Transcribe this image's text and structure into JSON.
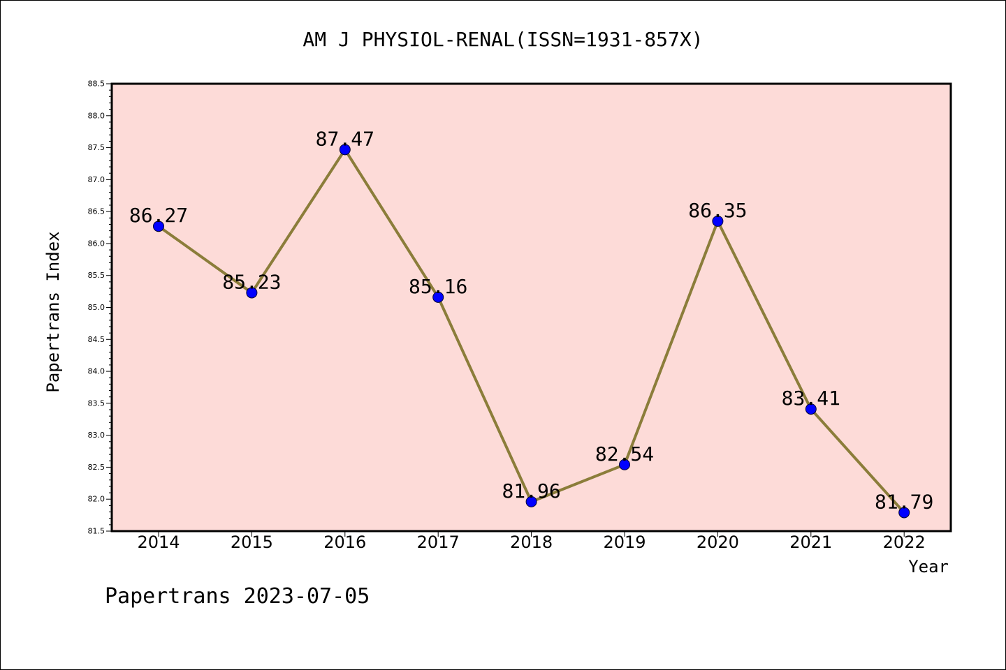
{
  "chart_data": {
    "type": "line",
    "title": "AM J PHYSIOL-RENAL(ISSN=1931-857X)",
    "xlabel": "Year",
    "ylabel": "Papertrans Index",
    "x": [
      "2014",
      "2015",
      "2016",
      "2017",
      "2018",
      "2019",
      "2020",
      "2021",
      "2022"
    ],
    "series": [
      {
        "values": [
          86.27,
          85.23,
          87.47,
          85.16,
          81.96,
          82.54,
          86.35,
          83.41,
          81.79
        ],
        "labels": [
          "86.27",
          "85.23",
          "87.47",
          "85.16",
          "81.96",
          "82.54",
          "86.35",
          "83.41",
          "81.79"
        ]
      }
    ],
    "ylim": [
      81.5,
      88.5
    ],
    "yticks": [
      "81.5",
      "82.0",
      "82.5",
      "83.0",
      "83.5",
      "84.0",
      "84.5",
      "85.0",
      "85.5",
      "86.0",
      "86.5",
      "87.0",
      "87.5",
      "88.0",
      "88.5"
    ],
    "grid": false,
    "colors": {
      "plot_background": "#fddbd8",
      "line": "#8b7d3a",
      "marker": "#0000ff"
    }
  },
  "footer": "Papertrans 2023-07-05"
}
